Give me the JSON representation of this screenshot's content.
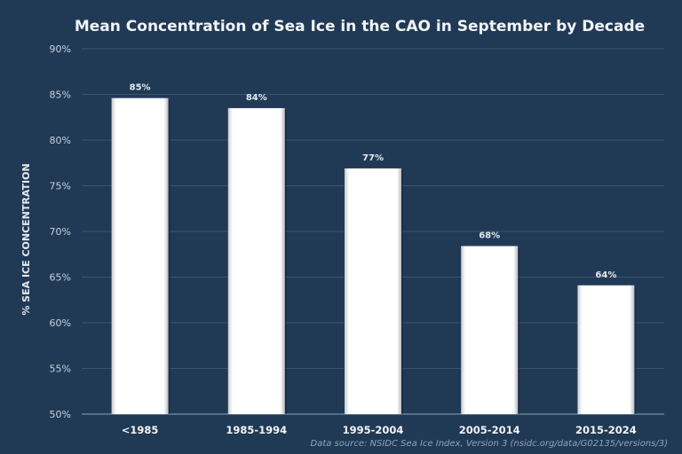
{
  "chart_data": {
    "type": "bar",
    "title": "Mean Concentration of Sea Ice in the CAO in September by Decade",
    "xlabel": "",
    "ylabel": "% SEA ICE CONCENTRATION",
    "categories": [
      "<1985",
      "1985-1994",
      "1995-2004",
      "2005-2014",
      "2015-2024"
    ],
    "values": [
      84.6,
      83.5,
      76.9,
      68.4,
      64.1
    ],
    "data_labels": [
      "85%",
      "84%",
      "77%",
      "68%",
      "64%"
    ],
    "ylim": [
      50,
      90
    ],
    "yticks": [
      50,
      55,
      60,
      65,
      70,
      75,
      80,
      85,
      90
    ],
    "ytick_labels": [
      "50%",
      "55%",
      "60%",
      "65%",
      "70%",
      "75%",
      "80%",
      "85%",
      "90%"
    ],
    "grid": true,
    "legend": "none",
    "source": "Data source: NSIDC Sea Ice Index, Version 3 (nsidc.org/data/G02135/versions/3)",
    "colors": {
      "background": "#203a56",
      "bar": "#ffffff",
      "grid": "#3a5572"
    }
  }
}
